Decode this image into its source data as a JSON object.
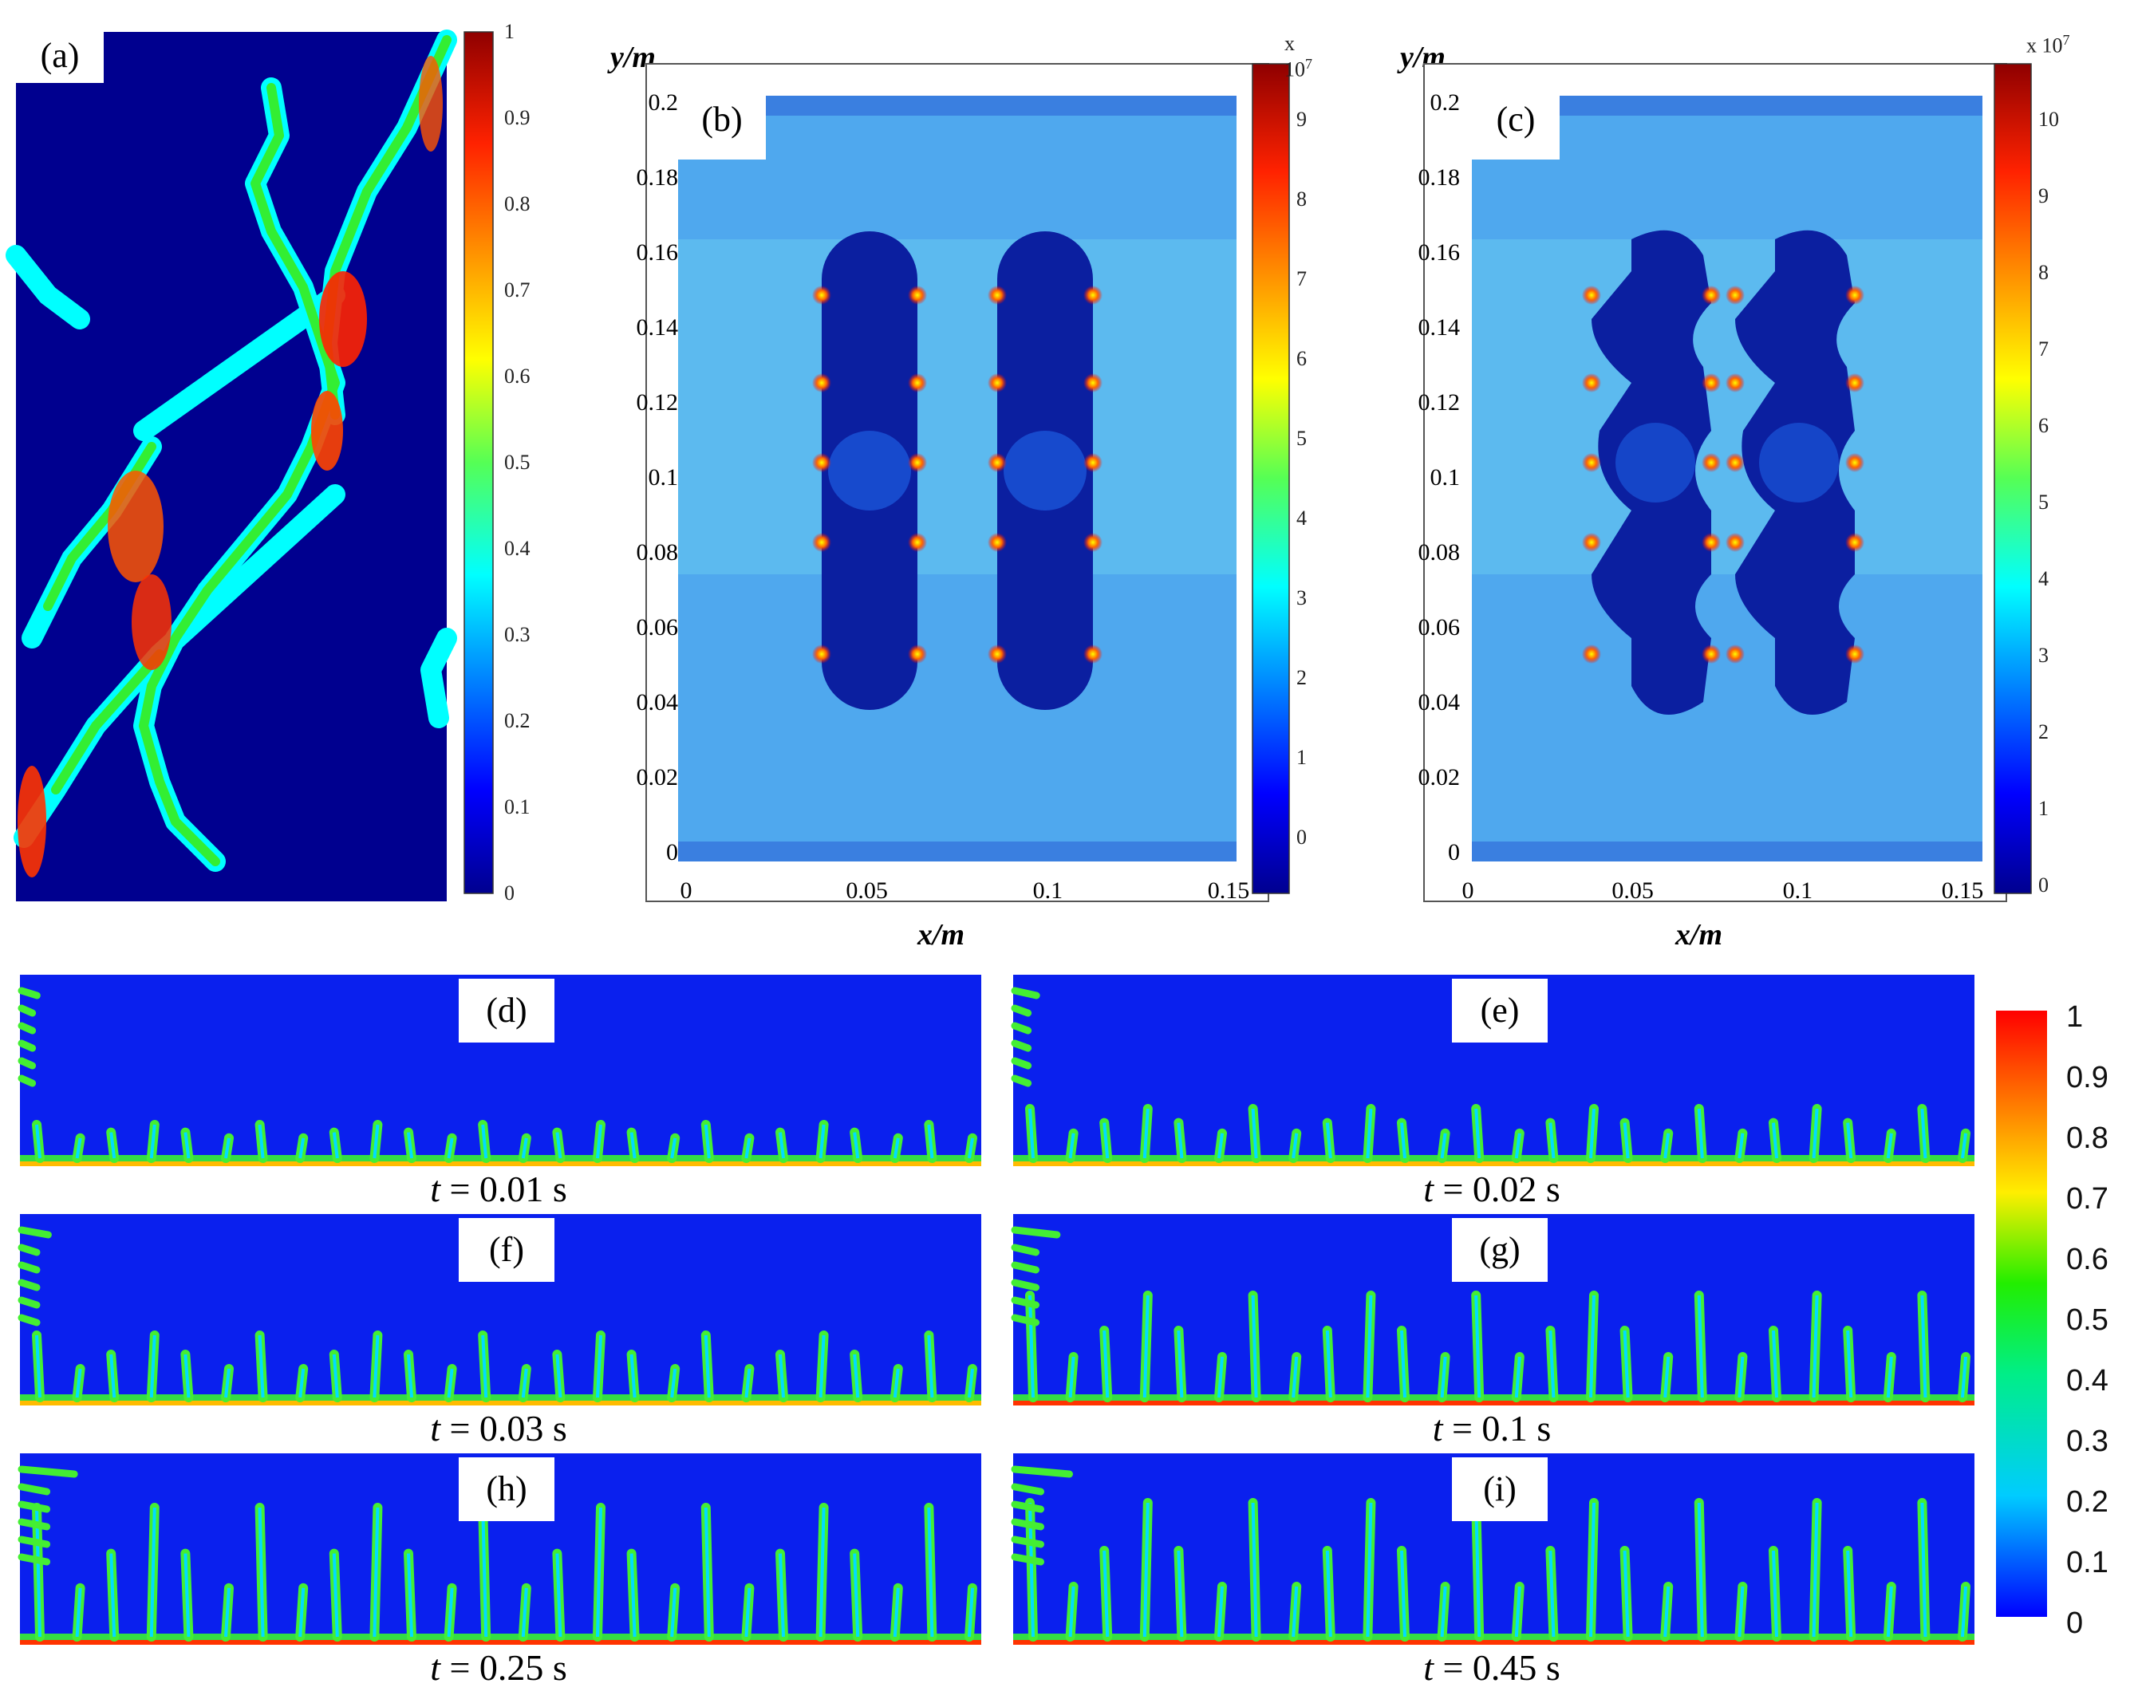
{
  "panels": {
    "a": {
      "label": "(a)",
      "colorbar_ticks": [
        "1",
        "0.9",
        "0.8",
        "0.7",
        "0.6",
        "0.5",
        "0.4",
        "0.3",
        "0.2",
        "0.1",
        "0"
      ]
    },
    "b": {
      "label": "(b)",
      "ylabel": "y/m",
      "xlabel": "x/m",
      "multiplier": "x 10",
      "multiplier_exp": "7",
      "yticks": [
        "0.2",
        "0.18",
        "0.16",
        "0.14",
        "0.12",
        "0.1",
        "0.08",
        "0.06",
        "0.04",
        "0.02",
        "0"
      ],
      "xticks": [
        "0",
        "0.05",
        "0.1",
        "0.15"
      ],
      "colorbar_ticks": [
        "9",
        "8",
        "7",
        "6",
        "5",
        "4",
        "3",
        "2",
        "1",
        "0"
      ]
    },
    "c": {
      "label": "(c)",
      "ylabel": "y/m",
      "xlabel": "x/m",
      "multiplier": "x 10",
      "multiplier_exp": "7",
      "yticks": [
        "0.2",
        "0.18",
        "0.16",
        "0.14",
        "0.12",
        "0.1",
        "0.08",
        "0.06",
        "0.04",
        "0.02",
        "0"
      ],
      "xticks": [
        "0",
        "0.05",
        "0.1",
        "0.15"
      ],
      "colorbar_ticks": [
        "10",
        "9",
        "8",
        "7",
        "6",
        "5",
        "4",
        "3",
        "2",
        "1",
        "0"
      ]
    }
  },
  "strips": [
    {
      "label": "(d)",
      "time_var": "t",
      "time_value": " = 0.01 s"
    },
    {
      "label": "(e)",
      "time_var": "t",
      "time_value": " = 0.02 s"
    },
    {
      "label": "(f)",
      "time_var": "t",
      "time_value": " = 0.03 s"
    },
    {
      "label": "(g)",
      "time_var": "t",
      "time_value": " = 0.1 s"
    },
    {
      "label": "(h)",
      "time_var": "t",
      "time_value": " = 0.25 s"
    },
    {
      "label": "(i)",
      "time_var": "t",
      "time_value": " = 0.45 s"
    }
  ],
  "shared_colorbar_ticks": [
    "1",
    "0.9",
    "0.8",
    "0.7",
    "0.6",
    "0.5",
    "0.4",
    "0.3",
    "0.2",
    "0.1",
    "0"
  ],
  "colors": {
    "jet_dark_blue": "#00008f",
    "jet_blue": "#0000ff",
    "jet_cyan": "#00ffff",
    "jet_green": "#33ee33",
    "jet_yellow": "#ffee00",
    "jet_red": "#ff0000",
    "field_light_blue": "#4fa8ee",
    "strip_blue": "#0a20ee"
  }
}
